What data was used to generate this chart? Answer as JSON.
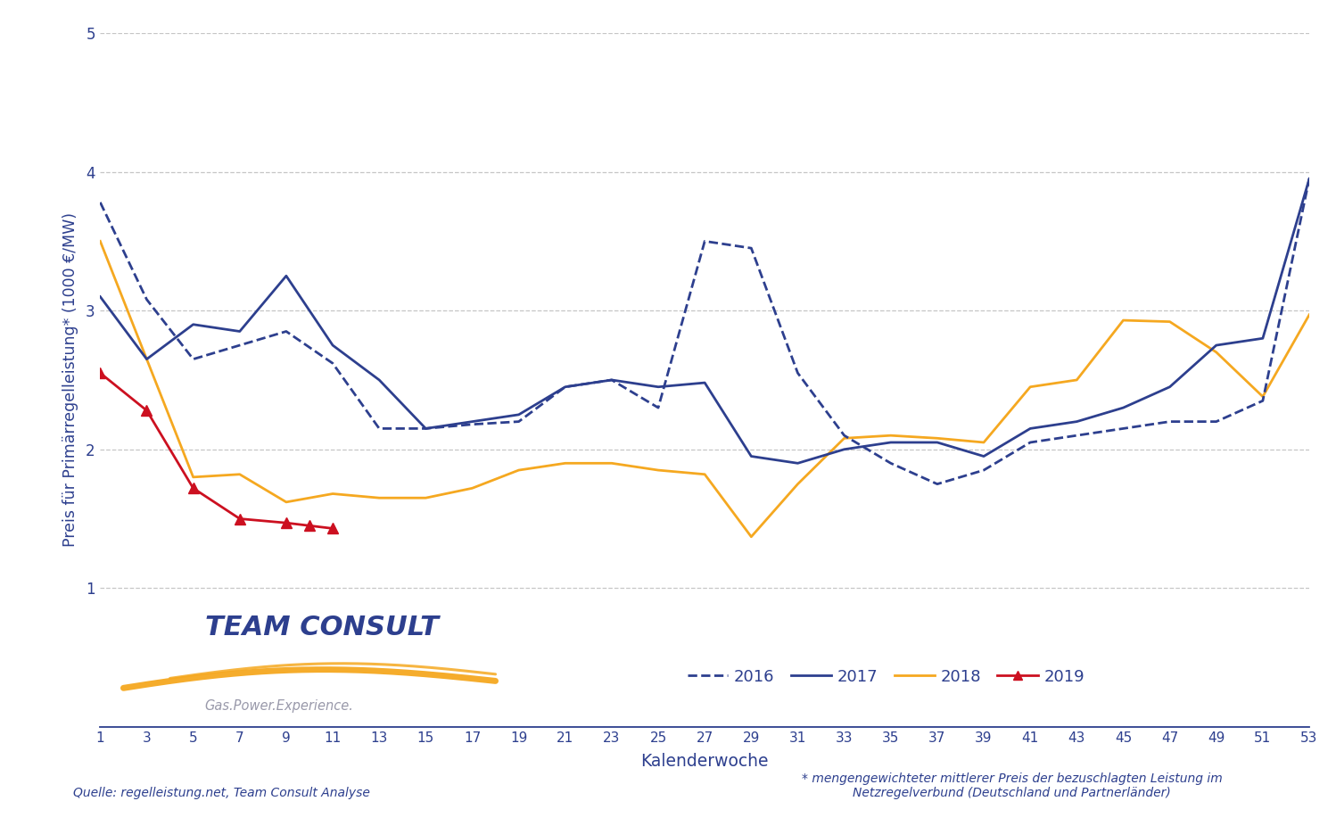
{
  "ylabel": "Preis für Primärregelleistung* (1000 €/MW)",
  "xlabel": "Kalenderwoche",
  "ylim": [
    0,
    5
  ],
  "yticks": [
    0,
    1,
    2,
    3,
    4,
    5
  ],
  "xlim": [
    1,
    53
  ],
  "xticks": [
    1,
    3,
    5,
    7,
    9,
    11,
    13,
    15,
    17,
    19,
    21,
    23,
    25,
    27,
    29,
    31,
    33,
    35,
    37,
    39,
    41,
    43,
    45,
    47,
    49,
    51,
    53
  ],
  "color_2016": "#2D3F8E",
  "color_2017": "#2D3F8E",
  "color_2018": "#F5A820",
  "color_2019": "#CC1020",
  "bg_color": "#FFFFFF",
  "grid_color": "#C0C0C0",
  "footer_left": "Quelle: regelleistung.net, Team Consult Analyse",
  "footer_right": "* mengengewichteter mittlerer Preis der bezuschlagten Leistung im\nNetzregelverbund (Deutschland und Partnerländer)",
  "data_2016": [
    [
      1,
      3.78
    ],
    [
      3,
      3.08
    ],
    [
      5,
      2.65
    ],
    [
      7,
      2.75
    ],
    [
      9,
      2.85
    ],
    [
      11,
      2.62
    ],
    [
      13,
      2.15
    ],
    [
      15,
      2.15
    ],
    [
      17,
      2.18
    ],
    [
      19,
      2.2
    ],
    [
      21,
      2.45
    ],
    [
      23,
      2.5
    ],
    [
      25,
      2.3
    ],
    [
      27,
      3.5
    ],
    [
      29,
      3.45
    ],
    [
      31,
      2.55
    ],
    [
      33,
      2.1
    ],
    [
      35,
      1.9
    ],
    [
      37,
      1.75
    ],
    [
      39,
      1.85
    ],
    [
      41,
      2.05
    ],
    [
      43,
      2.1
    ],
    [
      45,
      2.15
    ],
    [
      47,
      2.2
    ],
    [
      49,
      2.2
    ],
    [
      51,
      2.35
    ],
    [
      53,
      3.95
    ]
  ],
  "data_2017": [
    [
      1,
      3.1
    ],
    [
      3,
      2.65
    ],
    [
      5,
      2.9
    ],
    [
      7,
      2.85
    ],
    [
      9,
      3.25
    ],
    [
      11,
      2.75
    ],
    [
      13,
      2.5
    ],
    [
      15,
      2.15
    ],
    [
      17,
      2.2
    ],
    [
      19,
      2.25
    ],
    [
      21,
      2.45
    ],
    [
      23,
      2.5
    ],
    [
      25,
      2.45
    ],
    [
      27,
      2.48
    ],
    [
      29,
      1.95
    ],
    [
      31,
      1.9
    ],
    [
      33,
      2.0
    ],
    [
      35,
      2.05
    ],
    [
      37,
      2.05
    ],
    [
      39,
      1.95
    ],
    [
      41,
      2.15
    ],
    [
      43,
      2.2
    ],
    [
      45,
      2.3
    ],
    [
      47,
      2.45
    ],
    [
      49,
      2.75
    ],
    [
      51,
      2.8
    ],
    [
      53,
      3.95
    ]
  ],
  "data_2018": [
    [
      1,
      3.5
    ],
    [
      3,
      2.65
    ],
    [
      5,
      1.8
    ],
    [
      7,
      1.82
    ],
    [
      9,
      1.62
    ],
    [
      11,
      1.68
    ],
    [
      13,
      1.65
    ],
    [
      15,
      1.65
    ],
    [
      17,
      1.72
    ],
    [
      19,
      1.85
    ],
    [
      21,
      1.9
    ],
    [
      23,
      1.9
    ],
    [
      25,
      1.85
    ],
    [
      27,
      1.82
    ],
    [
      29,
      1.37
    ],
    [
      31,
      1.75
    ],
    [
      33,
      2.08
    ],
    [
      35,
      2.1
    ],
    [
      37,
      2.08
    ],
    [
      39,
      2.05
    ],
    [
      41,
      2.45
    ],
    [
      43,
      2.5
    ],
    [
      45,
      2.93
    ],
    [
      47,
      2.92
    ],
    [
      49,
      2.7
    ],
    [
      51,
      2.38
    ],
    [
      53,
      2.97
    ]
  ],
  "data_2019": [
    [
      1,
      2.55
    ],
    [
      3,
      2.28
    ],
    [
      5,
      1.72
    ],
    [
      7,
      1.5
    ],
    [
      9,
      1.47
    ],
    [
      10,
      1.45
    ],
    [
      11,
      1.43
    ]
  ],
  "logo_text": "TEAM CONSULT",
  "logo_sub": "Gas.Power.Experience.",
  "swoosh_color": "#F5A820",
  "logo_color": "#2D3F8E",
  "logo_sub_color": "#9999AA"
}
